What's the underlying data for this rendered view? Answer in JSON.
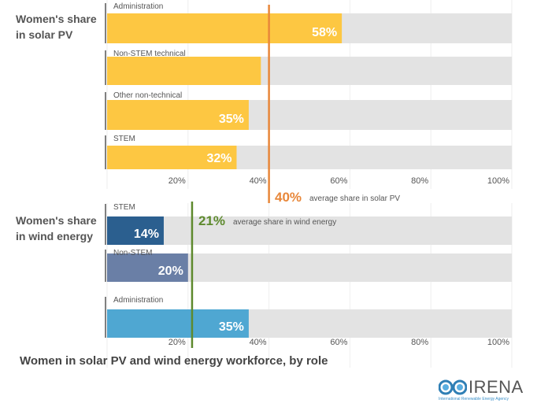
{
  "caption": "Women in solar PV and wind energy workforce, by role",
  "logo": {
    "name": "IRENA",
    "subtitle": "International Renewable Energy Agency"
  },
  "chart_data": [
    {
      "type": "bar",
      "orientation": "horizontal",
      "group_title": "Women's share in solar PV",
      "group_title_lines": [
        "Women's share",
        "in solar PV"
      ],
      "categories": [
        "Administration",
        "Non-STEM technical",
        "Other non-technical",
        "STEM"
      ],
      "values": [
        58,
        38,
        35,
        32
      ],
      "data_labels": [
        "58%",
        "",
        "35%",
        "32%"
      ],
      "bar_colors": [
        "#fdc742",
        "#fdc742",
        "#fdc742",
        "#fdc742"
      ],
      "background_color": "#e3e3e3",
      "xlim": [
        0,
        100
      ],
      "xticks": [
        20,
        40,
        60,
        80,
        100
      ],
      "xtick_labels": [
        "20%",
        "40%",
        "60%",
        "80%",
        "100%"
      ],
      "reference_line": {
        "value": 40,
        "label_value": "40%",
        "label_text": "average share in solar PV",
        "color": "#e8873a"
      },
      "grid": true
    },
    {
      "type": "bar",
      "orientation": "horizontal",
      "group_title": "Women's share in wind energy",
      "group_title_lines": [
        "Women's share",
        "in wind energy"
      ],
      "categories": [
        "STEM",
        "Non-STEM",
        "Administration"
      ],
      "values": [
        14,
        20,
        35
      ],
      "data_labels": [
        "14%",
        "20%",
        "35%"
      ],
      "bar_colors": [
        "#2b5f8f",
        "#6a7fa6",
        "#4fa7d2"
      ],
      "background_color": "#e3e3e3",
      "xlim": [
        0,
        100
      ],
      "xticks": [
        20,
        40,
        60,
        80,
        100
      ],
      "xtick_labels": [
        "20%",
        "40%",
        "60%",
        "80%",
        "100%"
      ],
      "reference_line": {
        "value": 21,
        "label_value": "21%",
        "label_text": "average share in wind energy",
        "color": "#5e8a2e"
      },
      "grid": true
    }
  ]
}
